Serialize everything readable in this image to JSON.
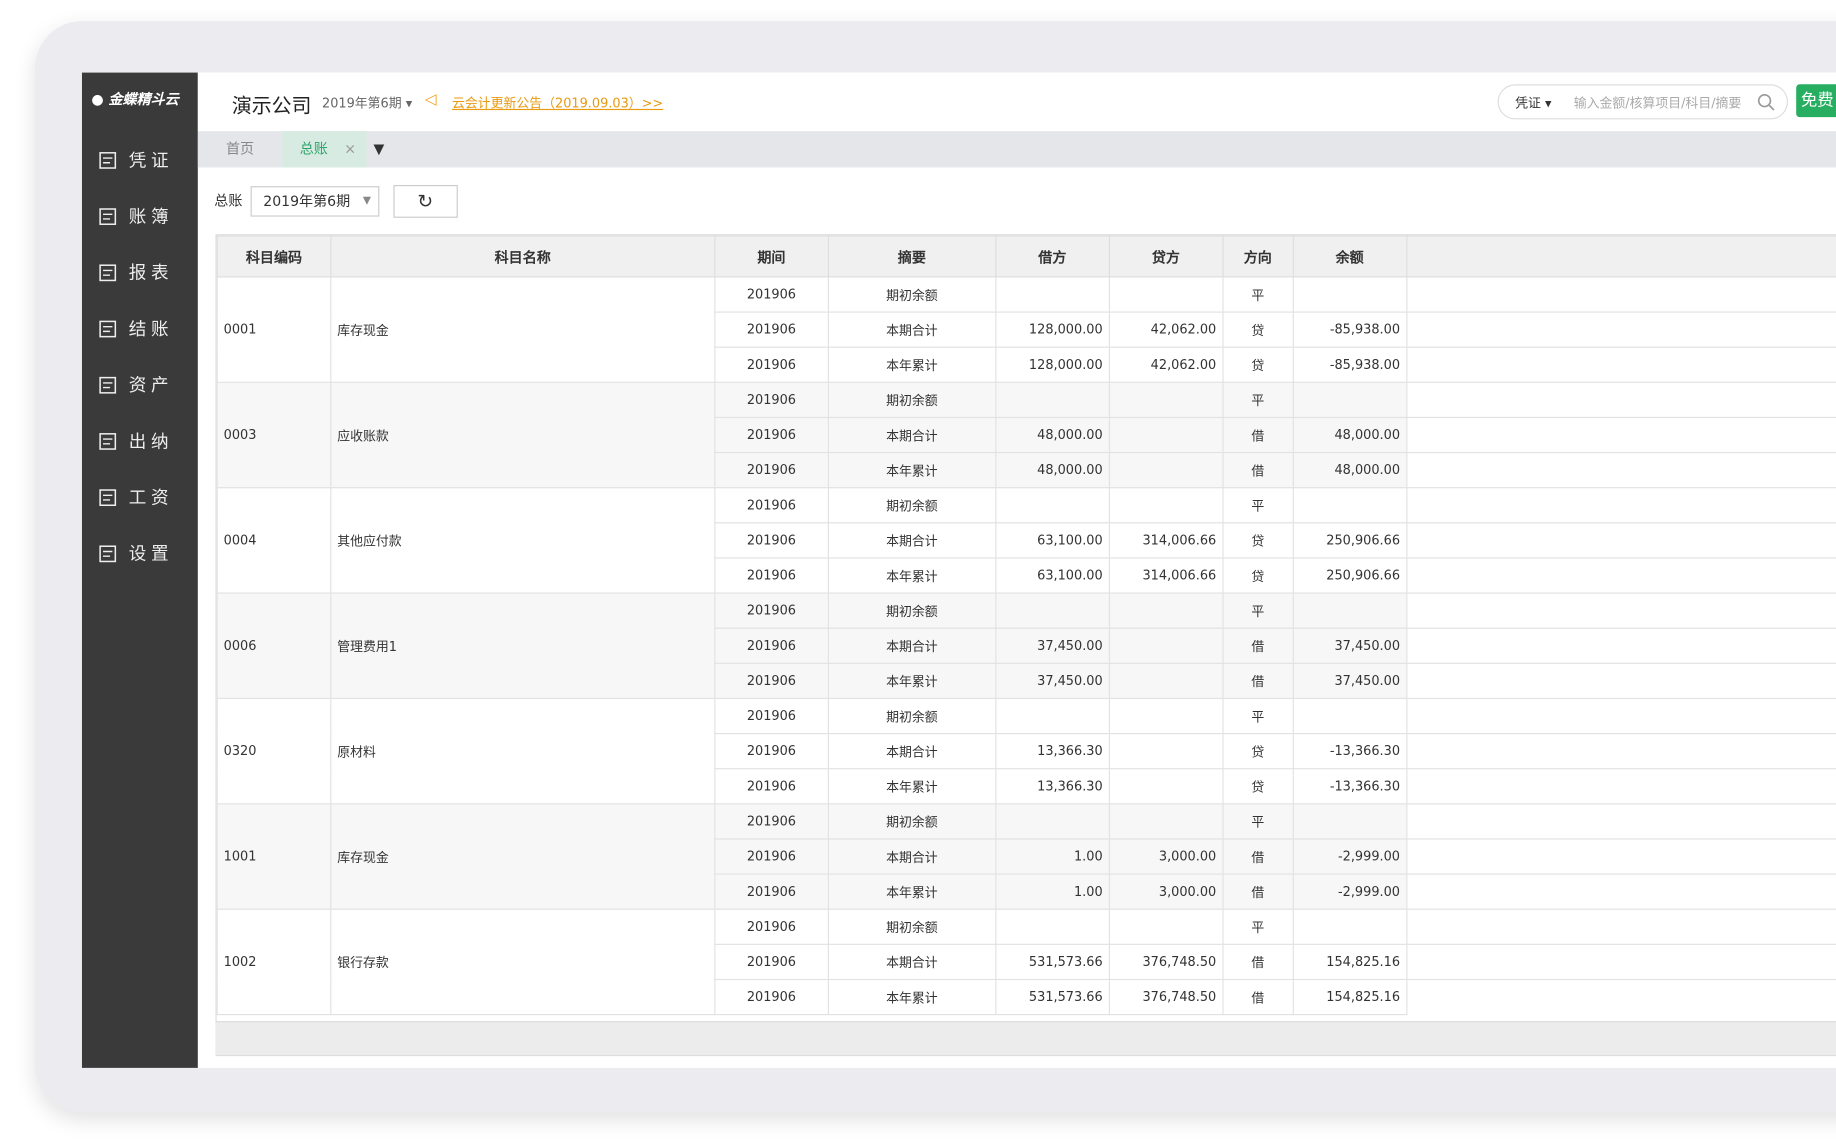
{
  "sidebar": {
    "logo": "金蝶精斗云",
    "menu": [
      "凭证",
      "账簿",
      "报表",
      "结账",
      "资产",
      "出纳",
      "工资",
      "设置"
    ]
  },
  "header": {
    "company": "演示公司",
    "period": "2019年第6期",
    "notice": "云会计更新公告（2019.09.03）>>",
    "search_type": "凭证",
    "search_placeholder": "输入金额/核算项目/科目/摘要",
    "button": "免费"
  },
  "tabs": [
    "首页",
    "总账"
  ],
  "toolbar": {
    "label": "总账",
    "period": "2019年第6期"
  },
  "table": {
    "columns": [
      "科目编码",
      "科目名称",
      "期间",
      "摘要",
      "借方",
      "贷方",
      "方向",
      "余额"
    ],
    "groups": [
      {
        "code": "0001",
        "name": "库存现金",
        "rows": [
          [
            "201906",
            "期初余额",
            null,
            null,
            "平",
            null
          ],
          [
            "201906",
            "本期合计",
            "128,000.00",
            "42,062.00",
            "贷",
            "-85,938.00"
          ],
          [
            "201906",
            "本年累计",
            "128,000.00",
            "42,062.00",
            "贷",
            "-85,938.00"
          ]
        ]
      },
      {
        "code": "0003",
        "name": "应收账款",
        "rows": [
          [
            "201906",
            "期初余额",
            null,
            null,
            "平",
            null
          ],
          [
            "201906",
            "本期合计",
            "48,000.00",
            null,
            "借",
            "48,000.00"
          ],
          [
            "201906",
            "本年累计",
            "48,000.00",
            null,
            "借",
            "48,000.00"
          ]
        ]
      },
      {
        "code": "0004",
        "name": "其他应付款",
        "rows": [
          [
            "201906",
            "期初余额",
            null,
            null,
            "平",
            null
          ],
          [
            "201906",
            "本期合计",
            "63,100.00",
            "314,006.66",
            "贷",
            "250,906.66"
          ],
          [
            "201906",
            "本年累计",
            "63,100.00",
            "314,006.66",
            "贷",
            "250,906.66"
          ]
        ]
      },
      {
        "code": "0006",
        "name": "管理费用1",
        "rows": [
          [
            "201906",
            "期初余额",
            null,
            null,
            "平",
            null
          ],
          [
            "201906",
            "本期合计",
            "37,450.00",
            null,
            "借",
            "37,450.00"
          ],
          [
            "201906",
            "本年累计",
            "37,450.00",
            null,
            "借",
            "37,450.00"
          ]
        ]
      },
      {
        "code": "0320",
        "name": "原材料",
        "rows": [
          [
            "201906",
            "期初余额",
            null,
            null,
            "平",
            null
          ],
          [
            "201906",
            "本期合计",
            "13,366.30",
            null,
            "贷",
            "-13,366.30"
          ],
          [
            "201906",
            "本年累计",
            "13,366.30",
            null,
            "贷",
            "-13,366.30"
          ]
        ]
      },
      {
        "code": "1001",
        "name": "库存现金",
        "rows": [
          [
            "201906",
            "期初余额",
            null,
            null,
            "平",
            null
          ],
          [
            "201906",
            "本期合计",
            "1.00",
            "3,000.00",
            "借",
            "-2,999.00"
          ],
          [
            "201906",
            "本年累计",
            "1.00",
            "3,000.00",
            "借",
            "-2,999.00"
          ]
        ]
      },
      {
        "code": "1002",
        "name": "银行存款",
        "rows": [
          [
            "201906",
            "期初余额",
            null,
            null,
            "平",
            null
          ],
          [
            "201906",
            "本期合计",
            "531,573.66",
            "376,748.50",
            "借",
            "154,825.16"
          ],
          [
            "201906",
            "本年累计",
            "531,573.66",
            "376,748.50",
            "借",
            "154,825.16"
          ]
        ]
      }
    ]
  }
}
